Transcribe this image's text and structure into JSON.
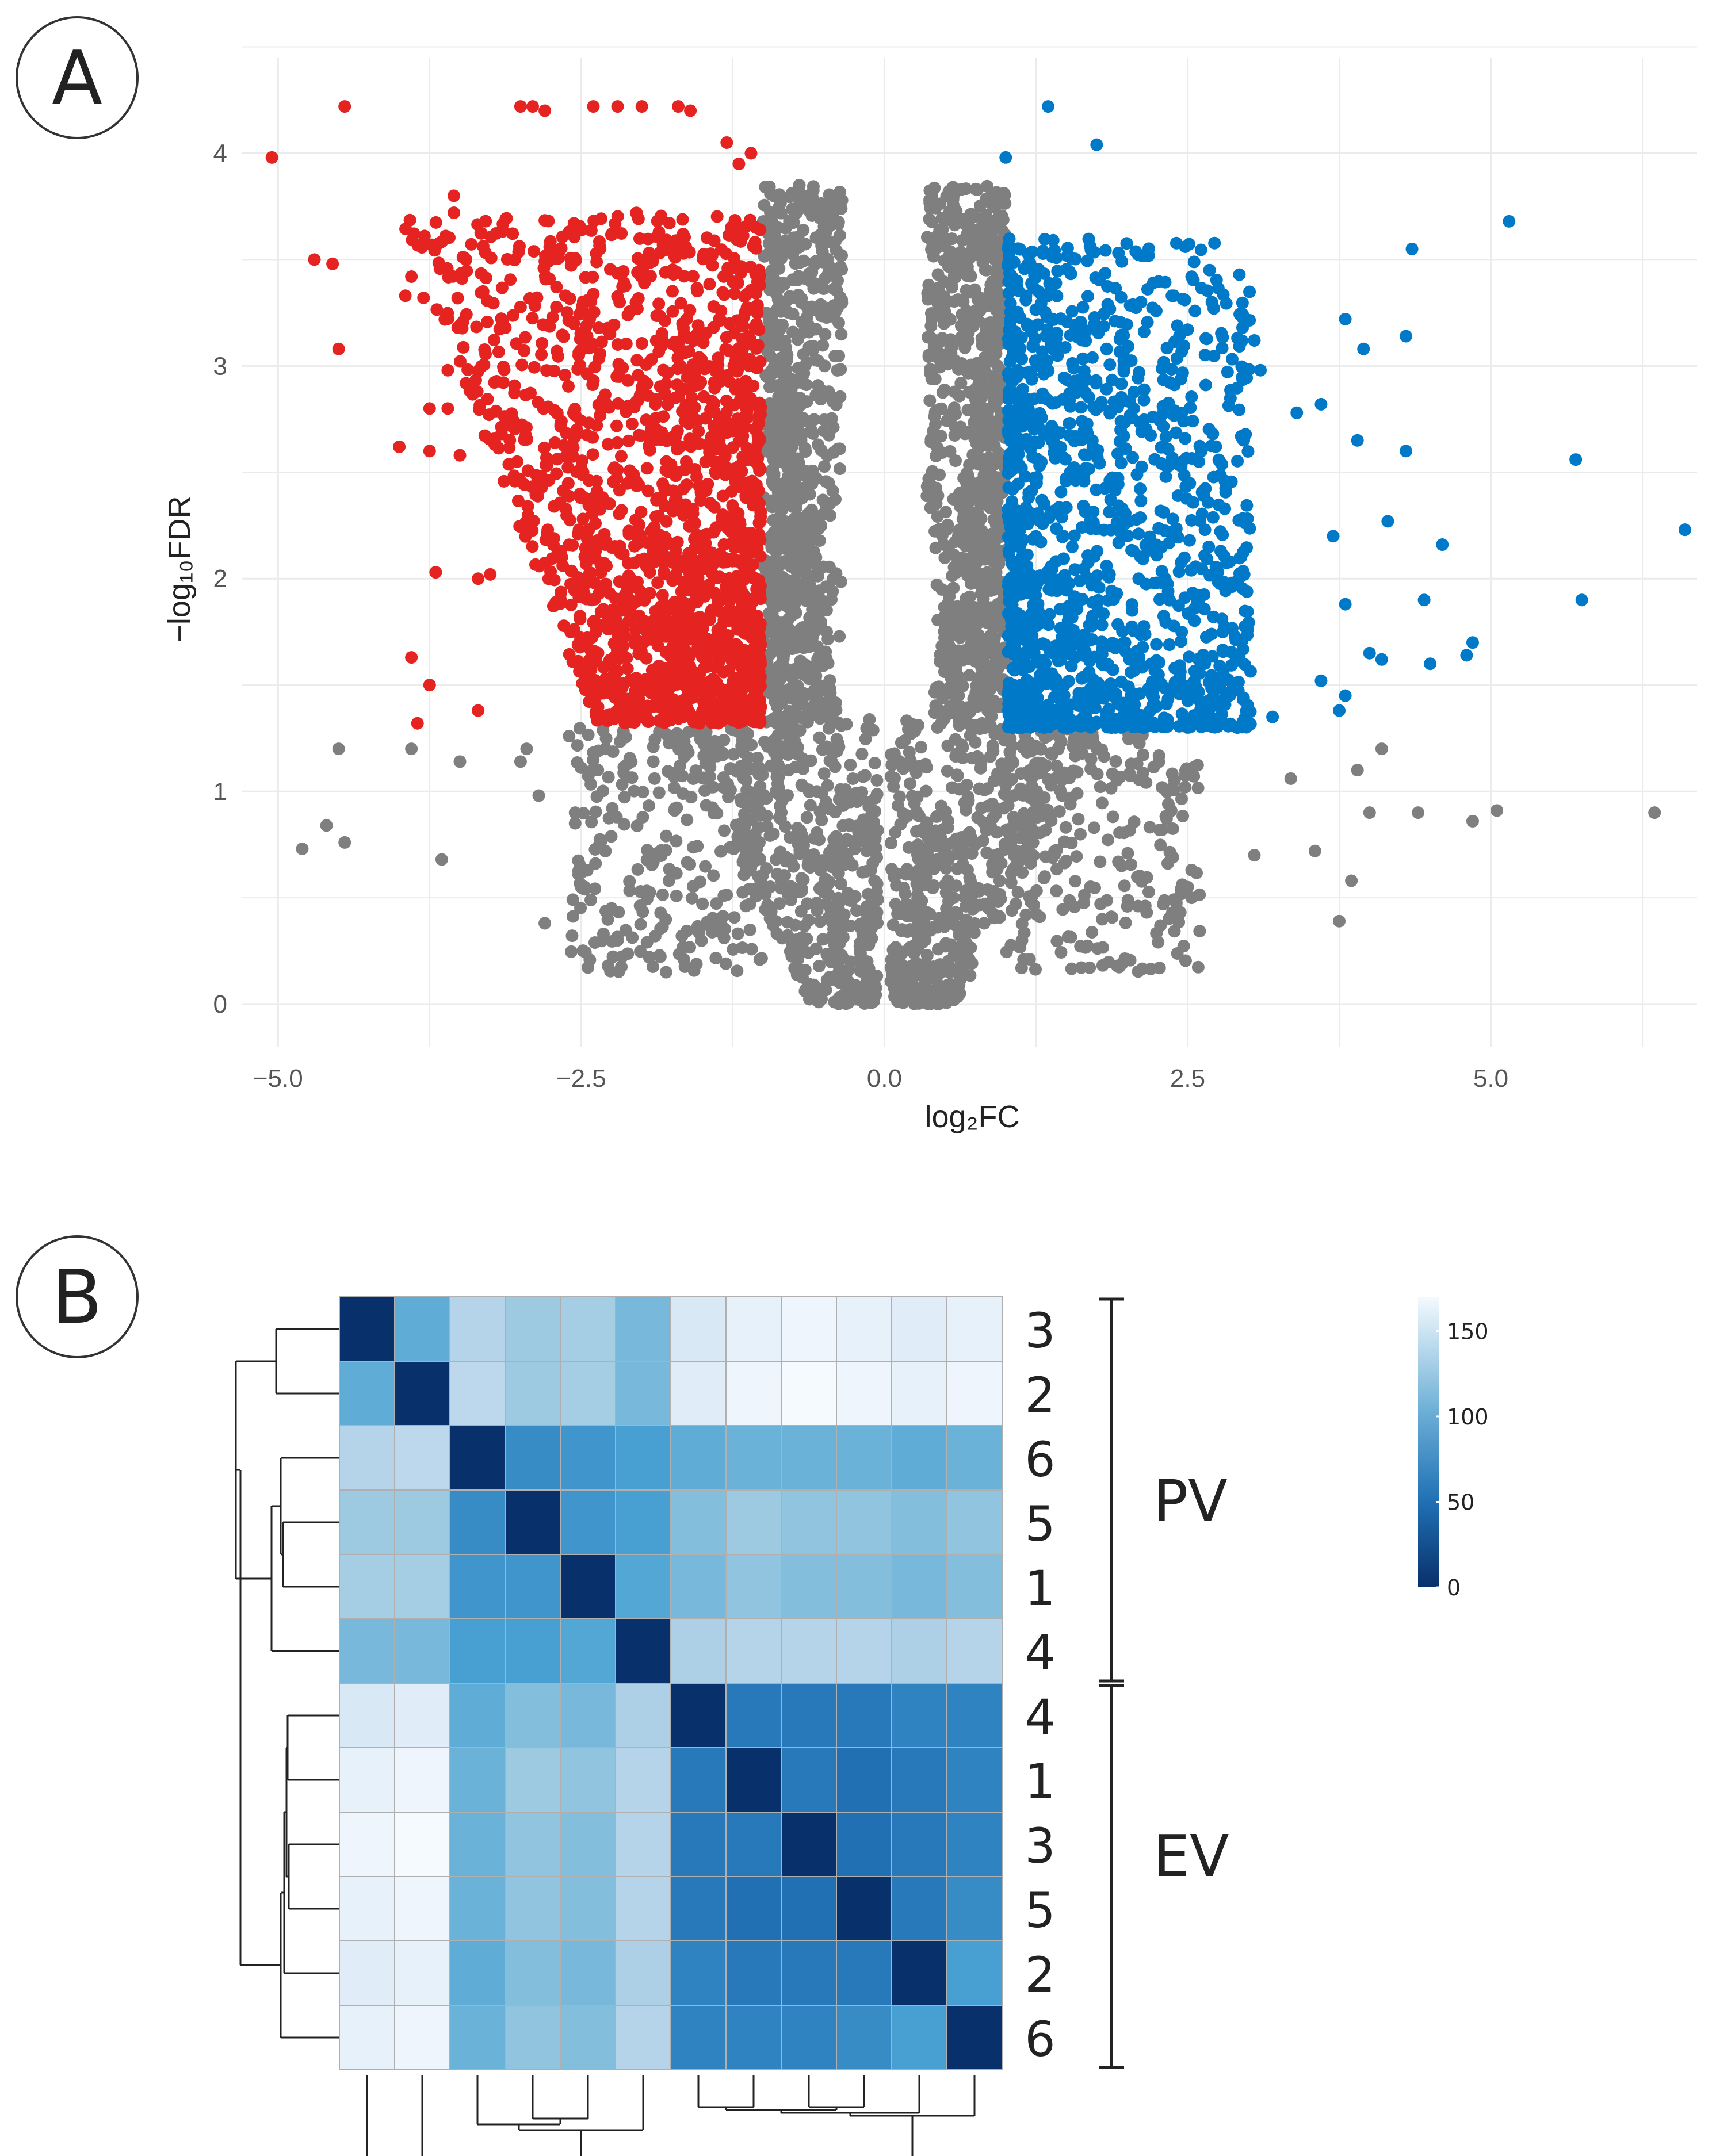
{
  "panels": {
    "a_letter": "A",
    "b_letter": "B"
  },
  "colors": {
    "down": "#e52421",
    "up": "#0079c8",
    "ns": "#7f7f7f",
    "grid": "#ebebeb",
    "heat_low": "#08306b",
    "heat_mid": "#4aa3d4",
    "heat_high": "#f5fafe"
  },
  "chart_data": [
    {
      "type": "scatter",
      "panel": "A",
      "title": "",
      "xlabel": "log₂FC",
      "ylabel": "−log₁₀FDR",
      "xlim": [
        -5.3,
        6.7
      ],
      "ylim": [
        -0.2,
        4.45
      ],
      "x_ticks": [
        -5.0,
        -2.5,
        0.0,
        2.5,
        5.0
      ],
      "x_tick_labels": [
        "−5.0",
        "−2.5",
        "0.0",
        "2.5",
        "5.0"
      ],
      "y_ticks": [
        0,
        1,
        2,
        3,
        4
      ],
      "y_tick_labels": [
        "0",
        "1",
        "2",
        "3",
        "4"
      ],
      "grid": true,
      "legend": "none",
      "thresholds": {
        "log2fc": 1.0,
        "neg_log10_fdr": 1.3
      },
      "series": [
        {
          "points": [
            [
              -5.05,
              3.98
            ],
            [
              -4.45,
              4.22
            ],
            [
              -4.55,
              3.48
            ],
            [
              -4.7,
              3.5
            ],
            [
              -4.5,
              3.08
            ],
            [
              -3.9,
              3.42
            ],
            [
              -3.95,
              3.33
            ],
            [
              -3.8,
              3.32
            ],
            [
              -3.55,
              3.8
            ],
            [
              -3.45,
              3.5
            ],
            [
              -3.6,
              2.98
            ],
            [
              -3.75,
              2.8
            ],
            [
              -4.0,
              2.62
            ],
            [
              -3.6,
              2.8
            ],
            [
              -3.75,
              2.6
            ],
            [
              -3.5,
              2.58
            ],
            [
              -3.35,
              2.0
            ],
            [
              -3.25,
              2.02
            ],
            [
              -3.7,
              2.03
            ],
            [
              -3.9,
              1.63
            ],
            [
              -3.75,
              1.5
            ],
            [
              -3.35,
              1.38
            ],
            [
              -3.85,
              1.32
            ],
            [
              -3.0,
              4.22
            ],
            [
              -2.9,
              4.22
            ],
            [
              -2.8,
              4.2
            ],
            [
              -2.4,
              4.22
            ],
            [
              -2.2,
              4.22
            ],
            [
              -2.0,
              4.22
            ],
            [
              -1.7,
              4.22
            ],
            [
              -1.6,
              4.2
            ],
            [
              -1.3,
              4.05
            ],
            [
              -1.1,
              4.0
            ],
            [
              -1.2,
              3.95
            ]
          ]
        },
        {
          "points": [
            [
              1.35,
              4.22
            ],
            [
              1.75,
              4.04
            ],
            [
              1.0,
              3.98
            ],
            [
              5.15,
              3.68
            ],
            [
              4.35,
              3.55
            ],
            [
              3.8,
              3.22
            ],
            [
              4.3,
              3.14
            ],
            [
              3.95,
              3.08
            ],
            [
              2.7,
              3.3
            ],
            [
              3.05,
              3.12
            ],
            [
              3.1,
              2.98
            ],
            [
              3.6,
              2.82
            ],
            [
              3.4,
              2.78
            ],
            [
              3.9,
              2.65
            ],
            [
              4.3,
              2.6
            ],
            [
              5.7,
              2.56
            ],
            [
              4.15,
              2.27
            ],
            [
              6.6,
              2.23
            ],
            [
              4.6,
              2.16
            ],
            [
              3.7,
              2.2
            ],
            [
              4.45,
              1.9
            ],
            [
              5.75,
              1.9
            ],
            [
              3.8,
              1.88
            ],
            [
              4.85,
              1.7
            ],
            [
              4.8,
              1.64
            ],
            [
              4.0,
              1.65
            ],
            [
              4.1,
              1.62
            ],
            [
              4.5,
              1.6
            ],
            [
              3.6,
              1.52
            ],
            [
              3.8,
              1.45
            ],
            [
              3.75,
              1.38
            ],
            [
              3.2,
              1.35
            ]
          ]
        },
        {
          "points": [
            [
              -4.8,
              0.73
            ],
            [
              -4.6,
              0.84
            ],
            [
              -4.45,
              0.76
            ],
            [
              -4.5,
              1.2
            ],
            [
              -3.9,
              1.2
            ],
            [
              -3.65,
              0.68
            ],
            [
              -3.5,
              1.14
            ],
            [
              -3.0,
              1.14
            ],
            [
              -2.95,
              1.2
            ],
            [
              -2.85,
              0.98
            ],
            [
              -2.6,
              1.26
            ],
            [
              -2.55,
              0.85
            ],
            [
              -2.55,
              0.9
            ],
            [
              -2.3,
              1.2
            ],
            [
              -2.8,
              0.38
            ],
            [
              -2.2,
              0.3
            ],
            [
              -1.8,
              0.15
            ],
            [
              -2.5,
              0.55
            ],
            [
              -2.25,
              0.45
            ],
            [
              3.35,
              1.06
            ],
            [
              4.1,
              1.2
            ],
            [
              4.0,
              0.9
            ],
            [
              3.85,
              0.58
            ],
            [
              3.75,
              0.39
            ],
            [
              5.05,
              0.91
            ],
            [
              6.35,
              0.9
            ],
            [
              4.4,
              0.9
            ],
            [
              3.9,
              1.1
            ],
            [
              4.85,
              0.86
            ],
            [
              3.55,
              0.72
            ],
            [
              3.05,
              0.7
            ],
            [
              2.5,
              0.55
            ]
          ]
        }
      ]
    },
    {
      "type": "heatmap",
      "panel": "B",
      "title": "",
      "row_labels": [
        "3",
        "2",
        "6",
        "5",
        "1",
        "4",
        "4",
        "1",
        "3",
        "5",
        "2",
        "6"
      ],
      "groups": [
        {
          "label": "PV",
          "rows": [
            0,
            5
          ]
        },
        {
          "label": "EV",
          "rows": [
            6,
            11
          ]
        }
      ],
      "colorbar": {
        "min": 0,
        "max": 170,
        "ticks": [
          0,
          50,
          100,
          150
        ],
        "tick_labels": [
          "0",
          "50",
          "100",
          "150"
        ]
      },
      "values": [
        [
          0,
          85,
          125,
          110,
          115,
          95,
          150,
          160,
          165,
          160,
          155,
          160
        ],
        [
          85,
          0,
          130,
          110,
          115,
          95,
          155,
          165,
          170,
          165,
          160,
          165
        ],
        [
          125,
          130,
          0,
          65,
          70,
          75,
          85,
          90,
          90,
          90,
          85,
          90
        ],
        [
          110,
          110,
          65,
          0,
          70,
          75,
          100,
          110,
          105,
          105,
          100,
          105
        ],
        [
          115,
          115,
          70,
          70,
          0,
          80,
          95,
          105,
          100,
          100,
          95,
          100
        ],
        [
          95,
          95,
          75,
          75,
          80,
          0,
          120,
          125,
          125,
          125,
          120,
          125
        ],
        [
          150,
          155,
          85,
          100,
          95,
          120,
          0,
          55,
          55,
          55,
          60,
          60
        ],
        [
          160,
          165,
          90,
          110,
          105,
          125,
          55,
          0,
          55,
          50,
          55,
          60
        ],
        [
          165,
          170,
          90,
          105,
          100,
          125,
          55,
          55,
          0,
          50,
          55,
          60
        ],
        [
          160,
          165,
          90,
          105,
          100,
          125,
          55,
          50,
          50,
          0,
          55,
          65
        ],
        [
          155,
          160,
          85,
          100,
          95,
          120,
          60,
          55,
          55,
          55,
          0,
          75
        ],
        [
          160,
          165,
          90,
          105,
          100,
          125,
          60,
          60,
          60,
          65,
          75,
          0
        ]
      ]
    }
  ]
}
